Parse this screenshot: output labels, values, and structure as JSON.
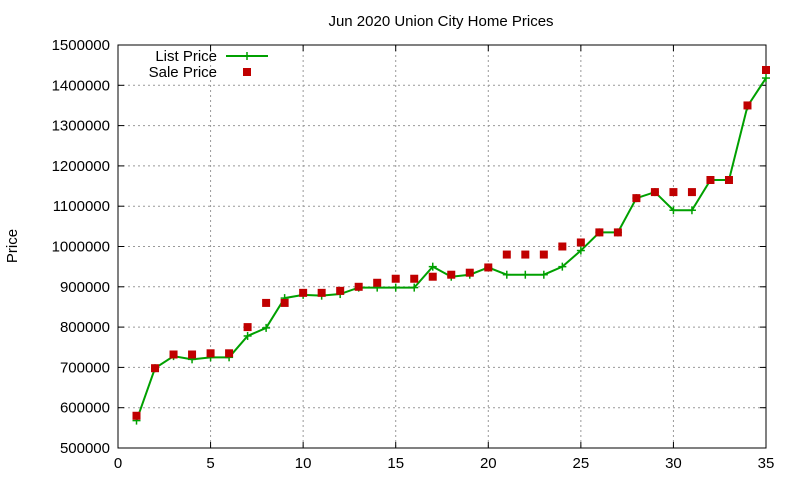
{
  "chart_data": {
    "type": "line",
    "title": "Jun 2020 Union City Home Prices",
    "xlabel": "",
    "ylabel": "Price",
    "xlim": [
      0,
      35
    ],
    "ylim": [
      500000,
      1500000
    ],
    "x_ticks": [
      0,
      5,
      10,
      15,
      20,
      25,
      30,
      35
    ],
    "y_ticks": [
      500000,
      600000,
      700000,
      800000,
      900000,
      1000000,
      1100000,
      1200000,
      1300000,
      1400000,
      1500000
    ],
    "grid": true,
    "legend_position": "top-left",
    "x": [
      1,
      2,
      3,
      4,
      5,
      6,
      7,
      8,
      9,
      10,
      11,
      12,
      13,
      14,
      15,
      16,
      17,
      18,
      19,
      20,
      21,
      22,
      23,
      24,
      25,
      26,
      27,
      28,
      29,
      30,
      31,
      32,
      33,
      34,
      35
    ],
    "series": [
      {
        "name": "List Price",
        "style": "line-plus",
        "color": "#00a000",
        "values": [
          568000,
          698000,
          728000,
          720000,
          725000,
          725000,
          778000,
          798000,
          872000,
          880000,
          878000,
          882000,
          898000,
          898000,
          898000,
          898000,
          950000,
          925000,
          930000,
          948000,
          930000,
          930000,
          930000,
          950000,
          990000,
          1035000,
          1035000,
          1120000,
          1135000,
          1090000,
          1090000,
          1165000,
          1165000,
          1348000,
          1418000
        ]
      },
      {
        "name": "Sale Price",
        "style": "square-points",
        "color": "#c00000",
        "values": [
          580000,
          698000,
          732000,
          732000,
          735000,
          735000,
          800000,
          860000,
          860000,
          885000,
          885000,
          890000,
          900000,
          910000,
          920000,
          920000,
          925000,
          930000,
          935000,
          948000,
          980000,
          980000,
          980000,
          1000000,
          1010000,
          1035000,
          1035000,
          1120000,
          1135000,
          1135000,
          1135000,
          1165000,
          1165000,
          1350000,
          1438000
        ]
      }
    ]
  }
}
